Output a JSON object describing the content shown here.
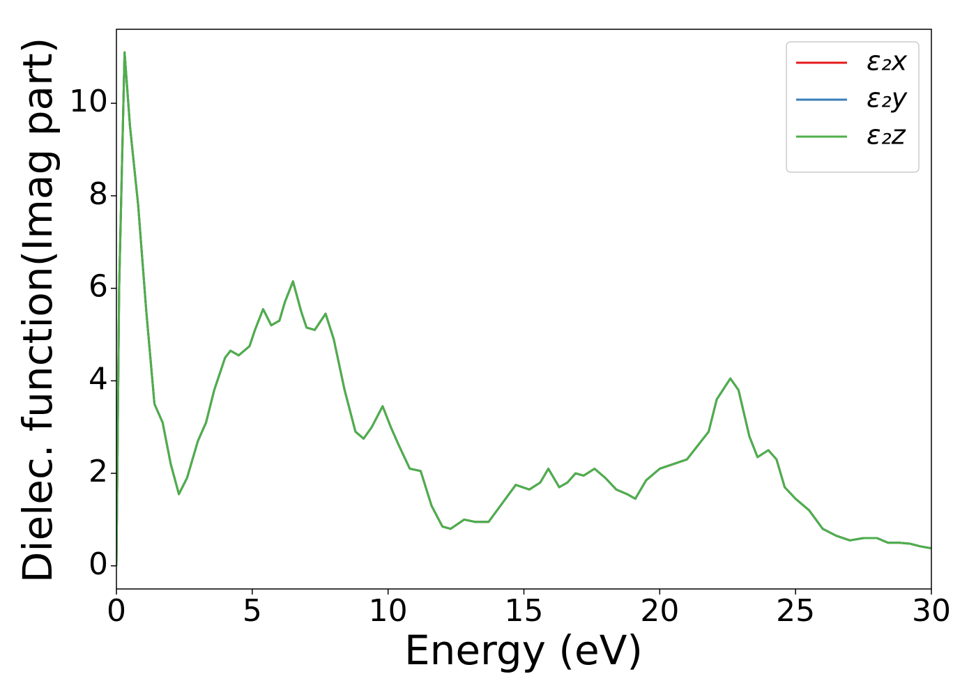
{
  "chart_data": {
    "type": "line",
    "xlabel": "Energy (eV)",
    "ylabel": "Dielec. function(Imag part)",
    "x": [
      0,
      0.1,
      0.3,
      0.5,
      0.8,
      1.1,
      1.4,
      1.7,
      2.0,
      2.3,
      2.6,
      3.0,
      3.3,
      3.6,
      4.0,
      4.2,
      4.5,
      4.9,
      5.1,
      5.4,
      5.7,
      6.0,
      6.2,
      6.5,
      6.8,
      7.0,
      7.3,
      7.7,
      8.0,
      8.4,
      8.8,
      9.1,
      9.4,
      9.8,
      10.1,
      10.4,
      10.8,
      11.2,
      11.6,
      12.0,
      12.3,
      12.8,
      13.2,
      13.7,
      14.2,
      14.7,
      15.2,
      15.6,
      15.9,
      16.3,
      16.6,
      16.9,
      17.2,
      17.6,
      18.0,
      18.4,
      18.8,
      19.1,
      19.5,
      20.0,
      20.5,
      21.0,
      21.4,
      21.8,
      22.1,
      22.6,
      22.9,
      23.3,
      23.6,
      24.0,
      24.3,
      24.6,
      25.0,
      25.5,
      26.0,
      26.5,
      27.0,
      27.5,
      28.0,
      28.4,
      28.8,
      29.2,
      29.6,
      30.0
    ],
    "series": [
      {
        "name": "ε₂x",
        "color": "#e41a1c",
        "values": [
          0,
          6,
          11.1,
          9.5,
          7.8,
          5.5,
          3.5,
          3.1,
          2.2,
          1.55,
          1.9,
          2.7,
          3.1,
          3.8,
          4.5,
          4.65,
          4.55,
          4.75,
          5.1,
          5.55,
          5.2,
          5.3,
          5.7,
          6.15,
          5.5,
          5.15,
          5.1,
          5.45,
          4.9,
          3.8,
          2.9,
          2.75,
          3.0,
          3.45,
          3.0,
          2.6,
          2.1,
          2.05,
          1.3,
          0.85,
          0.8,
          1.0,
          0.95,
          0.95,
          1.35,
          1.75,
          1.65,
          1.8,
          2.1,
          1.7,
          1.8,
          2.0,
          1.95,
          2.1,
          1.9,
          1.65,
          1.55,
          1.45,
          1.85,
          2.1,
          2.2,
          2.3,
          2.6,
          2.9,
          3.6,
          4.05,
          3.8,
          2.8,
          2.35,
          2.5,
          2.3,
          1.7,
          1.45,
          1.2,
          0.8,
          0.65,
          0.55,
          0.6,
          0.6,
          0.5,
          0.5,
          0.48,
          0.42,
          0.38
        ]
      },
      {
        "name": "ε₂y",
        "color": "#377eb8",
        "values": [
          0,
          6,
          11.1,
          9.5,
          7.8,
          5.5,
          3.5,
          3.1,
          2.2,
          1.55,
          1.9,
          2.7,
          3.1,
          3.8,
          4.5,
          4.65,
          4.55,
          4.75,
          5.1,
          5.55,
          5.2,
          5.3,
          5.7,
          6.15,
          5.5,
          5.15,
          5.1,
          5.45,
          4.9,
          3.8,
          2.9,
          2.75,
          3.0,
          3.45,
          3.0,
          2.6,
          2.1,
          2.05,
          1.3,
          0.85,
          0.8,
          1.0,
          0.95,
          0.95,
          1.35,
          1.75,
          1.65,
          1.8,
          2.1,
          1.7,
          1.8,
          2.0,
          1.95,
          2.1,
          1.9,
          1.65,
          1.55,
          1.45,
          1.85,
          2.1,
          2.2,
          2.3,
          2.6,
          2.9,
          3.6,
          4.05,
          3.8,
          2.8,
          2.35,
          2.5,
          2.3,
          1.7,
          1.45,
          1.2,
          0.8,
          0.65,
          0.55,
          0.6,
          0.6,
          0.5,
          0.5,
          0.48,
          0.42,
          0.38
        ]
      },
      {
        "name": "ε₂z",
        "color": "#4daf4a",
        "values": [
          0,
          6,
          11.1,
          9.5,
          7.8,
          5.5,
          3.5,
          3.1,
          2.2,
          1.55,
          1.9,
          2.7,
          3.1,
          3.8,
          4.5,
          4.65,
          4.55,
          4.75,
          5.1,
          5.55,
          5.2,
          5.3,
          5.7,
          6.15,
          5.5,
          5.15,
          5.1,
          5.45,
          4.9,
          3.8,
          2.9,
          2.75,
          3.0,
          3.45,
          3.0,
          2.6,
          2.1,
          2.05,
          1.3,
          0.85,
          0.8,
          1.0,
          0.95,
          0.95,
          1.35,
          1.75,
          1.65,
          1.8,
          2.1,
          1.7,
          1.8,
          2.0,
          1.95,
          2.1,
          1.9,
          1.65,
          1.55,
          1.45,
          1.85,
          2.1,
          2.2,
          2.3,
          2.6,
          2.9,
          3.6,
          4.05,
          3.8,
          2.8,
          2.35,
          2.5,
          2.3,
          1.7,
          1.45,
          1.2,
          0.8,
          0.65,
          0.55,
          0.6,
          0.6,
          0.5,
          0.5,
          0.48,
          0.42,
          0.38
        ]
      }
    ],
    "xlim": [
      0,
      30
    ],
    "xticks": [
      0,
      5,
      10,
      15,
      20,
      25,
      30
    ],
    "ylim": [
      -0.5,
      11.6
    ],
    "yticks": [
      0,
      2,
      4,
      6,
      8,
      10
    ],
    "grid": false,
    "legend": "upper right"
  }
}
